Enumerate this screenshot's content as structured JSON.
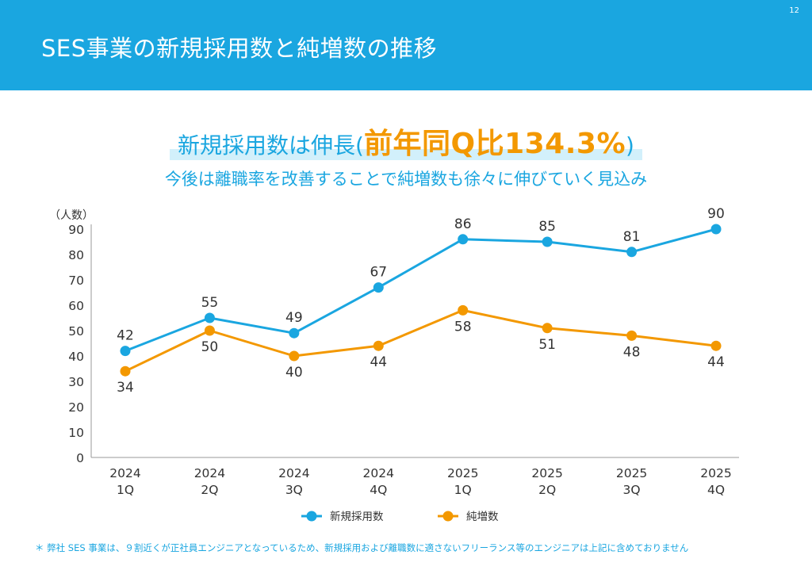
{
  "page": {
    "title": "SES事業の新規採用数と純増数の推移",
    "page_number": "12"
  },
  "headline": {
    "prefix": "新規採用数は伸長",
    "open_paren": "(",
    "highlight": "前年同Q比134.3%",
    "close_paren": ")"
  },
  "subheadline": "今後は離職率を改善することで純増数も徐々に伸びていく見込み",
  "footnote": "＊ 弊社 SES 事業は、９割近くが正社員エンジニアとなっているため、新規採用および離職数に適さないフリーランス等のエンジニアは上記に含めておりません",
  "colors": {
    "header": "#1aa6e0",
    "new_hires": "#1aa6e0",
    "net_increase": "#f39800",
    "axis": "#999999",
    "text": "#333333"
  },
  "chart_data": {
    "type": "line",
    "ylabel": "（人数）",
    "ylim": [
      0,
      90
    ],
    "yticks": [
      0,
      10,
      20,
      30,
      40,
      50,
      60,
      70,
      80,
      90
    ],
    "categories": [
      [
        "2024",
        "1Q"
      ],
      [
        "2024",
        "2Q"
      ],
      [
        "2024",
        "3Q"
      ],
      [
        "2024",
        "4Q"
      ],
      [
        "2025",
        "1Q"
      ],
      [
        "2025",
        "2Q"
      ],
      [
        "2025",
        "3Q"
      ],
      [
        "2025",
        "4Q"
      ]
    ],
    "series": [
      {
        "name": "新規採用数",
        "color": "#1aa6e0",
        "values": [
          42,
          55,
          49,
          67,
          86,
          85,
          81,
          90
        ],
        "label_position": "above"
      },
      {
        "name": "純増数",
        "color": "#f39800",
        "values": [
          34,
          50,
          40,
          44,
          58,
          51,
          48,
          44
        ],
        "label_position": "below"
      }
    ],
    "legend": "bottom-center",
    "grid": false
  }
}
